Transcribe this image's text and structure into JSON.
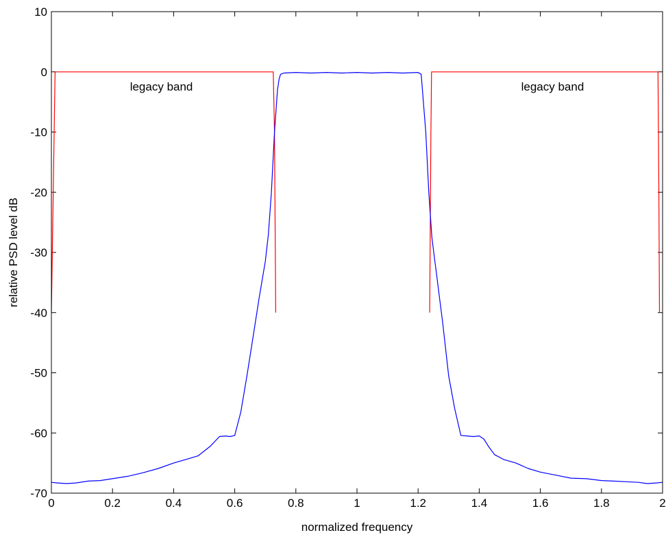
{
  "chart_data": {
    "type": "line",
    "title": "",
    "xlabel": "normalized frequency",
    "ylabel": "relative PSD level dB",
    "xlim": [
      0,
      2
    ],
    "ylim": [
      -70,
      10
    ],
    "x_ticks": [
      0,
      0.2,
      0.4,
      0.6,
      0.8,
      1,
      1.2,
      1.4,
      1.6,
      1.8,
      2
    ],
    "x_tick_labels": [
      "0",
      "0.2",
      "0.4",
      "0.6",
      "0.8",
      "1",
      "1.2",
      "1.4",
      "1.6",
      "1.8",
      "2"
    ],
    "y_ticks": [
      10,
      0,
      -10,
      -20,
      -30,
      -40,
      -50,
      -60,
      -70
    ],
    "y_tick_labels": [
      "10",
      "0",
      "-10",
      "-20",
      "-30",
      "-40",
      "-50",
      "-60",
      "-70"
    ],
    "grid": false,
    "annotations": [
      {
        "text": "legacy band",
        "x": 0.36,
        "y": -2.4
      },
      {
        "text": "legacy band",
        "x": 1.64,
        "y": -2.4
      }
    ],
    "series": [
      {
        "color": "#ff0000",
        "x": [
          0.0,
          0.012,
          0.014,
          0.726,
          0.73,
          0.734,
          null,
          1.238,
          1.242,
          1.244,
          1.985,
          1.988,
          1.99
        ],
        "y": [
          -40,
          0,
          0,
          0,
          -10,
          -40,
          null,
          -40,
          -10,
          0,
          0,
          -20,
          -40
        ]
      },
      {
        "color": "#0000ff",
        "x": [
          0.0,
          0.02,
          0.05,
          0.08,
          0.12,
          0.16,
          0.2,
          0.25,
          0.3,
          0.35,
          0.4,
          0.44,
          0.48,
          0.52,
          0.55,
          0.57,
          0.585,
          0.6,
          0.62,
          0.64,
          0.66,
          0.68,
          0.7,
          0.71,
          0.72,
          0.73,
          0.74,
          0.745,
          0.75,
          0.76,
          0.8,
          0.85,
          0.9,
          0.95,
          1.0,
          1.05,
          1.1,
          1.15,
          1.2,
          1.21,
          1.225,
          1.235,
          1.245,
          1.255,
          1.26,
          1.27,
          1.28,
          1.3,
          1.32,
          1.34,
          1.36,
          1.38,
          1.4,
          1.415,
          1.43,
          1.45,
          1.48,
          1.52,
          1.56,
          1.6,
          1.65,
          1.7,
          1.75,
          1.8,
          1.84,
          1.88,
          1.92,
          1.95,
          1.98,
          2.0
        ],
        "y": [
          -68.2,
          -68.3,
          -68.4,
          -68.3,
          -68.0,
          -67.9,
          -67.6,
          -67.2,
          -66.6,
          -65.9,
          -65.0,
          -64.4,
          -63.8,
          -62.2,
          -60.6,
          -60.5,
          -60.6,
          -60.4,
          -56.5,
          -50.5,
          -44.0,
          -37.5,
          -31.5,
          -27.0,
          -20.0,
          -10.0,
          -3.0,
          -1.2,
          -0.4,
          -0.2,
          -0.1,
          -0.2,
          -0.1,
          -0.2,
          -0.1,
          -0.2,
          -0.1,
          -0.2,
          -0.1,
          -0.4,
          -10.0,
          -20.0,
          -27.5,
          -31.5,
          -33.5,
          -37.5,
          -41.5,
          -50.5,
          -56.0,
          -60.4,
          -60.5,
          -60.6,
          -60.5,
          -61.0,
          -62.2,
          -63.6,
          -64.4,
          -65.0,
          -65.9,
          -66.5,
          -67.0,
          -67.5,
          -67.6,
          -67.9,
          -68.0,
          -68.1,
          -68.2,
          -68.4,
          -68.3,
          -68.2
        ]
      }
    ]
  }
}
